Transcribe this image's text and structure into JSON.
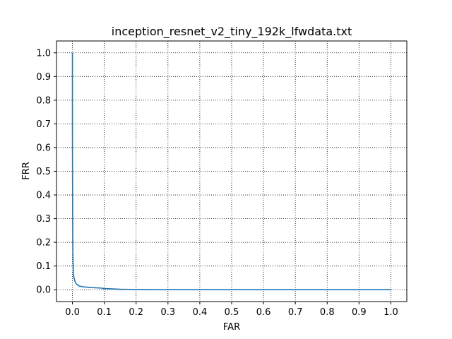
{
  "chart_data": {
    "type": "line",
    "title": "inception_resnet_v2_tiny_192k_lfwdata.txt",
    "xlabel": "FAR",
    "ylabel": "FRR",
    "xlim": [
      -0.05,
      1.05
    ],
    "ylim": [
      -0.05,
      1.05
    ],
    "xticks": [
      0.0,
      0.1,
      0.2,
      0.3,
      0.4,
      0.5,
      0.6,
      0.7,
      0.8,
      0.9,
      1.0
    ],
    "yticks": [
      0.0,
      0.1,
      0.2,
      0.3,
      0.4,
      0.5,
      0.6,
      0.7,
      0.8,
      0.9,
      1.0
    ],
    "xtick_labels": [
      "0.0",
      "0.1",
      "0.2",
      "0.3",
      "0.4",
      "0.5",
      "0.6",
      "0.7",
      "0.8",
      "0.9",
      "1.0"
    ],
    "ytick_labels": [
      "0.0",
      "0.1",
      "0.2",
      "0.3",
      "0.4",
      "0.5",
      "0.6",
      "0.7",
      "0.8",
      "0.9",
      "1.0"
    ],
    "grid": true,
    "color": "#1f77b4",
    "series": [
      {
        "x": [
          0.0,
          0.0,
          0.0005,
          0.001,
          0.0015,
          0.002,
          0.003,
          0.005,
          0.008,
          0.012,
          0.02,
          0.035,
          0.06,
          0.09,
          0.1,
          0.12,
          0.15,
          0.2,
          0.3,
          0.5,
          0.7,
          1.0
        ],
        "y": [
          1.0,
          0.7,
          0.4,
          0.25,
          0.15,
          0.12,
          0.07,
          0.05,
          0.035,
          0.025,
          0.016,
          0.012,
          0.009,
          0.007,
          0.005,
          0.004,
          0.002,
          0.001,
          0.0,
          0.0,
          0.0,
          0.0
        ]
      }
    ]
  }
}
